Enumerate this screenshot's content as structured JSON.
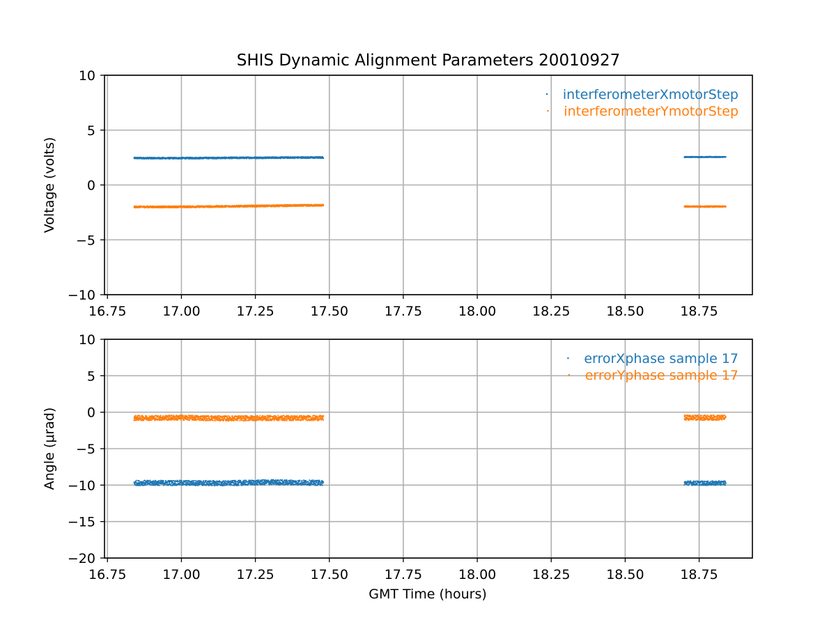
{
  "title": "SHIS Dynamic Alignment Parameters 20010927",
  "chart_data": [
    {
      "type": "scatter",
      "ylabel": "Voltage (volts)",
      "xlabel": "",
      "xlim": [
        16.74,
        18.93
      ],
      "ylim": [
        -10,
        10
      ],
      "xticks": [
        16.75,
        17.0,
        17.25,
        17.5,
        17.75,
        18.0,
        18.25,
        18.5,
        18.75
      ],
      "xtick_labels": [
        "16.75",
        "17.00",
        "17.25",
        "17.50",
        "17.75",
        "18.00",
        "18.25",
        "18.50",
        "18.75"
      ],
      "yticks": [
        10,
        5,
        0,
        -5,
        -10
      ],
      "ytick_labels": [
        "10",
        "5",
        "0",
        "−5",
        "−10"
      ],
      "grid": true,
      "legend_position": "top-right",
      "series": [
        {
          "name": "interferometerXmotorStep",
          "color": "#1f77b4",
          "segments": [
            {
              "x": [
                16.84,
                16.95,
                17.1,
                17.25,
                17.4,
                17.48
              ],
              "y": [
                2.45,
                2.44,
                2.46,
                2.48,
                2.5,
                2.5
              ],
              "noise": 0.07
            },
            {
              "x": [
                18.7,
                18.78,
                18.84
              ],
              "y": [
                2.55,
                2.55,
                2.55
              ],
              "noise": 0.04
            }
          ]
        },
        {
          "name": "interferometerYmotorStep",
          "color": "#ff7f0e",
          "segments": [
            {
              "x": [
                16.84,
                16.95,
                17.1,
                17.25,
                17.4,
                17.48
              ],
              "y": [
                -2.0,
                -2.0,
                -1.97,
                -1.92,
                -1.87,
                -1.85
              ],
              "noise": 0.08
            },
            {
              "x": [
                18.7,
                18.78,
                18.84
              ],
              "y": [
                -1.97,
                -1.97,
                -1.97
              ],
              "noise": 0.06
            }
          ]
        }
      ]
    },
    {
      "type": "scatter",
      "ylabel": "Angle (μrad)",
      "xlabel": "GMT Time (hours)",
      "xlim": [
        16.74,
        18.93
      ],
      "ylim": [
        -20,
        10
      ],
      "xticks": [
        16.75,
        17.0,
        17.25,
        17.5,
        17.75,
        18.0,
        18.25,
        18.5,
        18.75
      ],
      "xtick_labels": [
        "16.75",
        "17.00",
        "17.25",
        "17.50",
        "17.75",
        "18.00",
        "18.25",
        "18.50",
        "18.75"
      ],
      "yticks": [
        10,
        5,
        0,
        -5,
        -10,
        -15,
        -20
      ],
      "ytick_labels": [
        "10",
        "5",
        "0",
        "−5",
        "−10",
        "−15",
        "−20"
      ],
      "grid": true,
      "legend_position": "top-right",
      "series": [
        {
          "name": "errorXphase sample 17",
          "color": "#1f77b4",
          "segments": [
            {
              "x": [
                16.84,
                17.0,
                17.15,
                17.3,
                17.48
              ],
              "y": [
                -9.7,
                -9.7,
                -9.75,
                -9.6,
                -9.7
              ],
              "noise": 0.35
            },
            {
              "x": [
                18.7,
                18.78,
                18.84
              ],
              "y": [
                -9.7,
                -9.75,
                -9.7
              ],
              "noise": 0.3
            }
          ]
        },
        {
          "name": "errorYphase sample 17",
          "color": "#ff7f0e",
          "segments": [
            {
              "x": [
                16.84,
                17.0,
                17.15,
                17.3,
                17.48
              ],
              "y": [
                -0.8,
                -0.75,
                -0.85,
                -0.8,
                -0.8
              ],
              "noise": 0.35
            },
            {
              "x": [
                18.7,
                18.78,
                18.84
              ],
              "y": [
                -0.75,
                -0.75,
                -0.75
              ],
              "noise": 0.35
            }
          ]
        }
      ]
    }
  ]
}
